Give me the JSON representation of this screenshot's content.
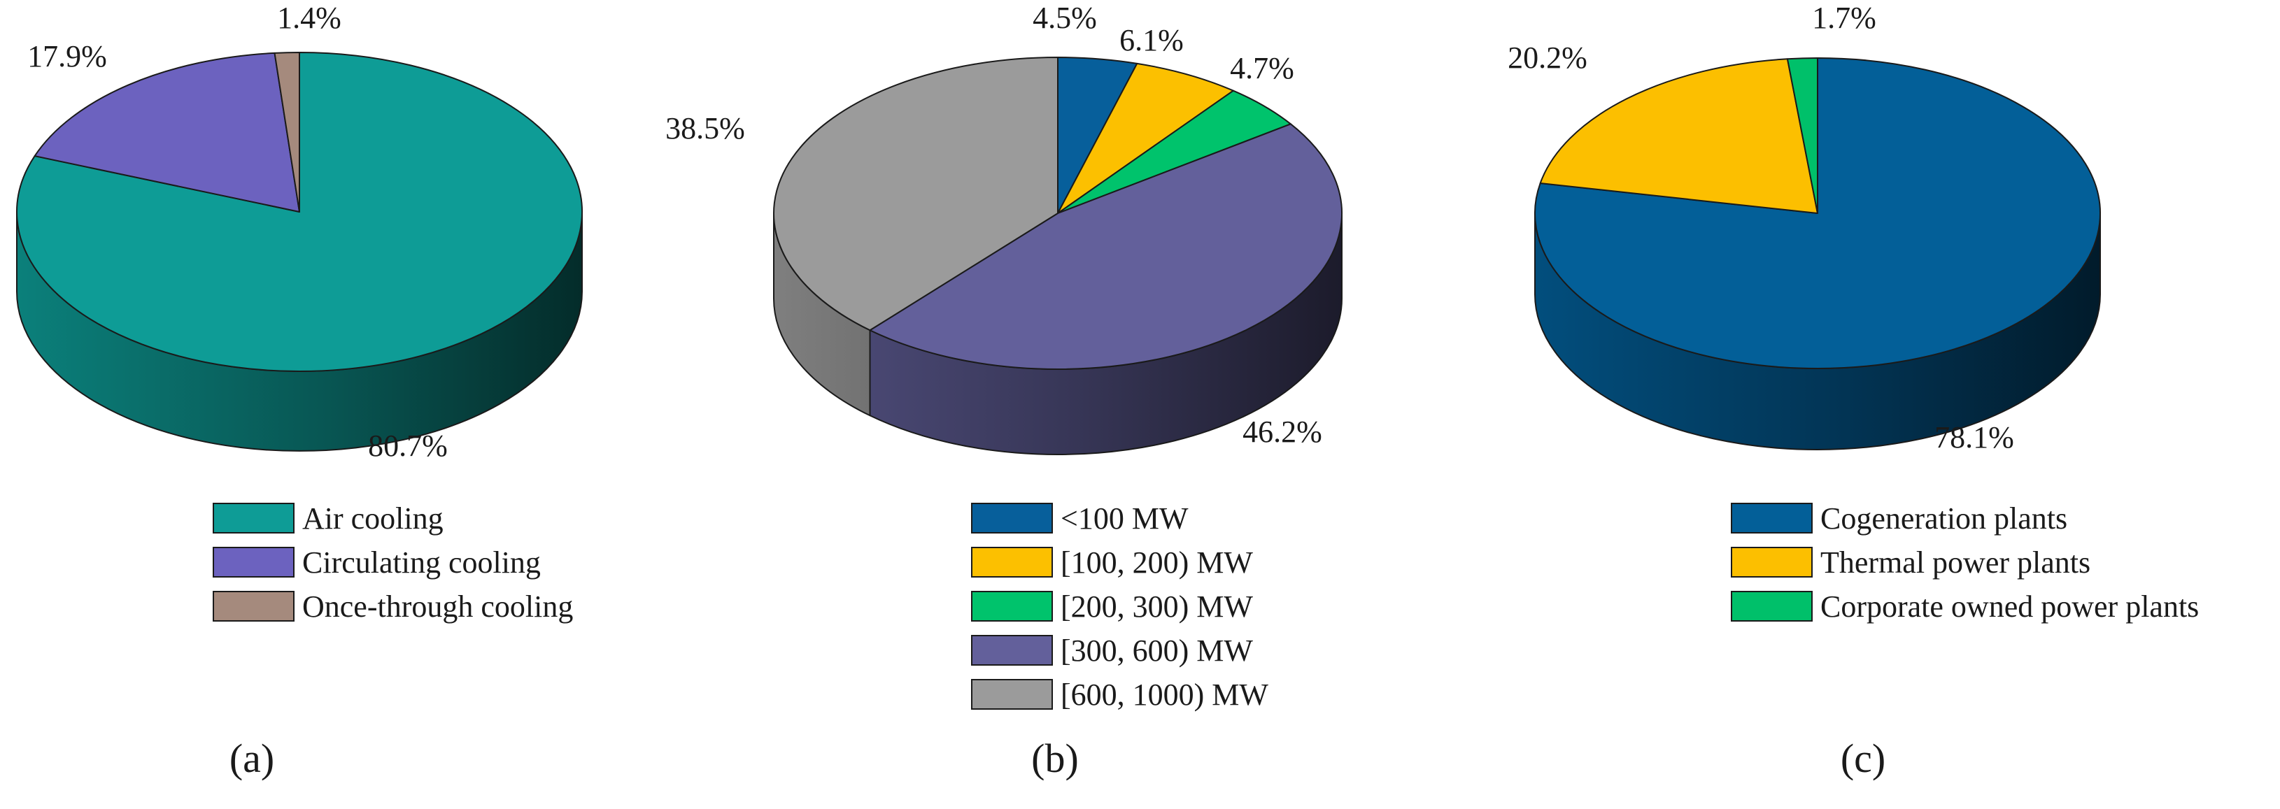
{
  "chart_data": [
    {
      "type": "pie",
      "panel_label": "(a)",
      "slices": [
        {
          "name": "Air cooling",
          "value": 80.7,
          "label": "80.7%",
          "color": "#0e9c96"
        },
        {
          "name": "Circulating cooling",
          "value": 17.9,
          "label": "17.9%",
          "color": "#6c62bf"
        },
        {
          "name": "Once-through cooling",
          "value": 1.4,
          "label": "1.4%",
          "color": "#a58a7d"
        }
      ]
    },
    {
      "type": "pie",
      "panel_label": "(b)",
      "slices": [
        {
          "name": "<100 MW",
          "value": 4.5,
          "label": "4.5%",
          "color": "#075f9b"
        },
        {
          "name": "[100, 200) MW",
          "value": 6.1,
          "label": "6.1%",
          "color": "#fcc000"
        },
        {
          "name": "[200, 300) MW",
          "value": 4.7,
          "label": "4.7%",
          "color": "#00c36c"
        },
        {
          "name": "[300, 600) MW",
          "value": 46.2,
          "label": "46.2%",
          "color": "#63609b"
        },
        {
          "name": "[600, 1000) MW",
          "value": 38.5,
          "label": "38.5%",
          "color": "#9b9b9b"
        }
      ]
    },
    {
      "type": "pie",
      "panel_label": "(c)",
      "slices": [
        {
          "name": "Cogeneration plants",
          "value": 78.1,
          "label": "78.1%",
          "color": "#035f98"
        },
        {
          "name": "Thermal power plants",
          "value": 20.2,
          "label": "20.2%",
          "color": "#fcbf00"
        },
        {
          "name": "Corporate owned power plants",
          "value": 1.7,
          "label": "1.7%",
          "color": "#00c06a"
        }
      ]
    }
  ]
}
